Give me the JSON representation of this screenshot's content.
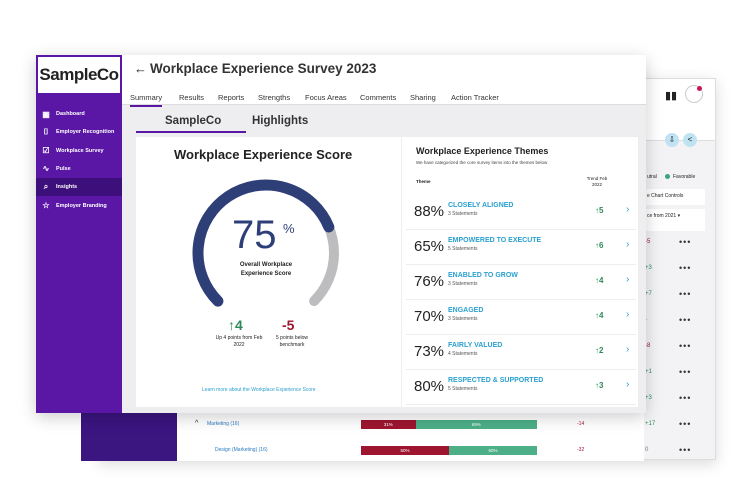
{
  "brand": {
    "logo": "SampleCo",
    "accent": "#5a17a6"
  },
  "sidebar": {
    "items": [
      {
        "label": "Dashboard",
        "icon": "dashboard-icon"
      },
      {
        "label": "Employer Recognition",
        "icon": "bookmark-icon"
      },
      {
        "label": "Workplace Survey",
        "icon": "checklist-icon"
      },
      {
        "label": "Pulse",
        "icon": "pulse-icon"
      },
      {
        "label": "Insights",
        "icon": "insights-icon",
        "active": true
      },
      {
        "label": "Employer Branding",
        "icon": "star-icon"
      }
    ]
  },
  "header": {
    "back": "←",
    "title": "Workplace Experience Survey 2023",
    "tabs": [
      "Summary",
      "Results",
      "Reports",
      "Strengths",
      "Focus Areas",
      "Comments",
      "Sharing",
      "Action Tracker"
    ],
    "active_tab": "Summary"
  },
  "subtabs": [
    "SampleCo",
    "Highlights"
  ],
  "score": {
    "title": "Workplace Experience Score",
    "value": "75",
    "unit": "%",
    "fraction": 0.75,
    "label": "Overall Workplace Experience Score",
    "trend": "4",
    "trend_label": "Up 4 points from Feb 2022",
    "benchmark": "-5",
    "benchmark_label": "5 points below benchmark",
    "link": "Learn more about the Workplace Experience Score"
  },
  "themes": {
    "title": "Workplace Experience Themes",
    "subtitle": "We have categorized the core survey items into the themes below",
    "col_theme": "Theme",
    "col_trend": "Trend Feb 2022",
    "items": [
      {
        "pct": "88%",
        "name": "CLOSELY ALIGNED",
        "statements": "3 Statements",
        "trend": "5"
      },
      {
        "pct": "65%",
        "name": "EMPOWERED TO EXECUTE",
        "statements": "5 Statements",
        "trend": "6"
      },
      {
        "pct": "76%",
        "name": "ENABLED TO GROW",
        "statements": "3 Statements",
        "trend": "4"
      },
      {
        "pct": "70%",
        "name": "ENGAGED",
        "statements": "3 Statements",
        "trend": "4"
      },
      {
        "pct": "73%",
        "name": "FAIRLY VALUED",
        "statements": "4 Statements",
        "trend": "2"
      },
      {
        "pct": "80%",
        "name": "RESPECTED & SUPPORTED",
        "statements": "5 Statements",
        "trend": "3"
      }
    ]
  },
  "back": {
    "legend": [
      "utral",
      "Favorable"
    ],
    "chart_controls": "e Chart Controls",
    "col_change": "ce from 2021",
    "changes": [
      "-5",
      "+3",
      "+7",
      "-",
      "-8",
      "+1",
      "+3",
      "+17",
      "0"
    ],
    "rows": [
      {
        "name": "Marketing (16)",
        "unfav": "31%",
        "fav": "69%",
        "delta": "-14",
        "unfav_frac": 0.31
      },
      {
        "name": "Design (Marketing) (16)",
        "unfav": "50%",
        "fav": "50%",
        "delta": "-32",
        "unfav_frac": 0.5
      }
    ]
  }
}
